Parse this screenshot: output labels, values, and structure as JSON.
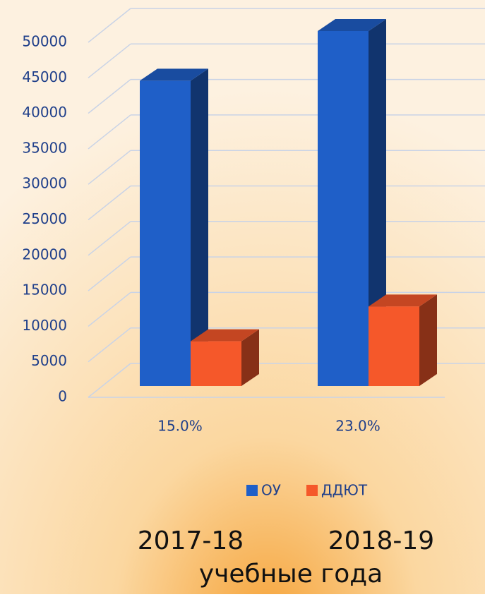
{
  "chart_data": {
    "type": "bar3d",
    "categories": [
      "15.0%",
      "23.0%"
    ],
    "series": [
      {
        "name": "ОУ",
        "color": "#1f5fc8",
        "values": [
          43000,
          50000
        ]
      },
      {
        "name": "ДДЮТ",
        "color": "#f5582a",
        "values": [
          6300,
          11200
        ]
      }
    ],
    "ylim": [
      0,
      50000
    ],
    "yticks": [
      0,
      5000,
      10000,
      15000,
      20000,
      25000,
      30000,
      35000,
      40000,
      45000,
      50000
    ],
    "grid": true,
    "legend": "bottom",
    "group_labels": [
      "2017-18",
      "2018-19"
    ],
    "xlabel": "учебные года"
  }
}
